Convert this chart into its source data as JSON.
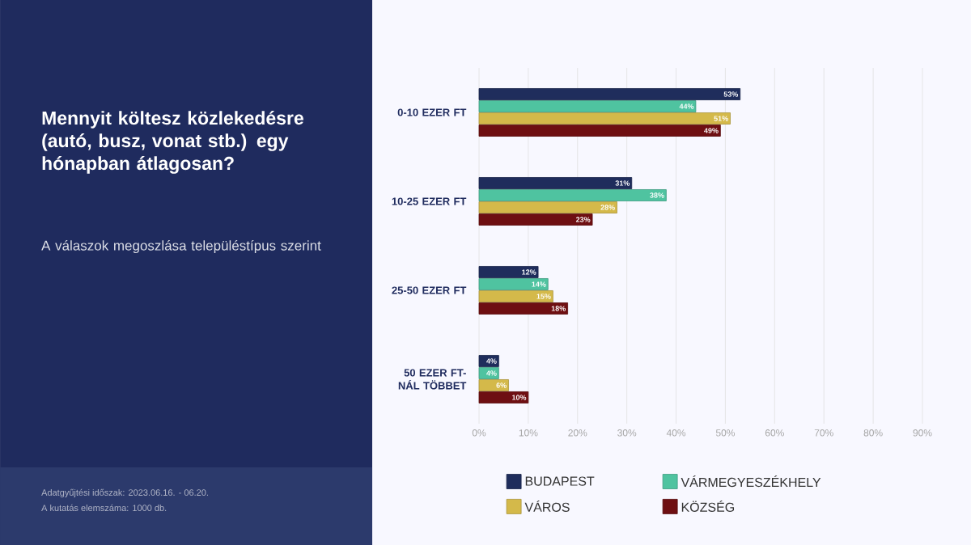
{
  "chart_data": {
    "type": "bar",
    "orientation": "horizontal",
    "title": "Mennyit költesz közlekedésre (autó, busz, vonat stb.) egy hónapban átlagosan?",
    "subtitle": "A válaszok megoszlása településtípus szerint",
    "annotations": [
      "Adatgyűjtési időszak: 2023.06.16. - 06.20.",
      "A kutatás elemszáma: 1000 db."
    ],
    "categories": [
      "0-10 EZER FT",
      "10-25 EZER FT",
      "25-50 EZER FT",
      "50 EZER FT-NÁL TÖBBET"
    ],
    "series": [
      {
        "name": "BUDAPEST",
        "color": "#1f2d5c",
        "values": [
          53,
          31,
          12,
          4
        ],
        "value_labels": [
          "53%",
          "31%",
          "12%",
          "4%"
        ]
      },
      {
        "name": "VÁRMEGYESZÉKHELY",
        "color": "#4fc3a0",
        "values": [
          44,
          38,
          14,
          4
        ],
        "value_labels": [
          "44%",
          "38%",
          "14%",
          "4%"
        ]
      },
      {
        "name": "VÁROS",
        "color": "#d4b94a",
        "values": [
          51,
          28,
          15,
          6
        ],
        "value_labels": [
          "51%",
          "28%",
          "15%",
          "6%"
        ]
      },
      {
        "name": "KÖZSÉG",
        "color": "#6e0f12",
        "values": [
          49,
          23,
          18,
          10
        ],
        "value_labels": [
          "49%",
          "23%",
          "18%",
          "10%"
        ]
      }
    ],
    "xlim": [
      0,
      90
    ],
    "xticks": [
      {
        "value": 0,
        "label": "0%"
      },
      {
        "value": 10,
        "label": "10%"
      },
      {
        "value": 20,
        "label": "20%"
      },
      {
        "value": 30,
        "label": "30%"
      },
      {
        "value": 40,
        "label": "40%"
      },
      {
        "value": 50,
        "label": "50%"
      },
      {
        "value": 60,
        "label": "60%"
      },
      {
        "value": 70,
        "label": "70%"
      },
      {
        "value": 80,
        "label": "80%"
      },
      {
        "value": 90,
        "label": "90%"
      }
    ],
    "grid": "x",
    "legend": "bottom"
  }
}
